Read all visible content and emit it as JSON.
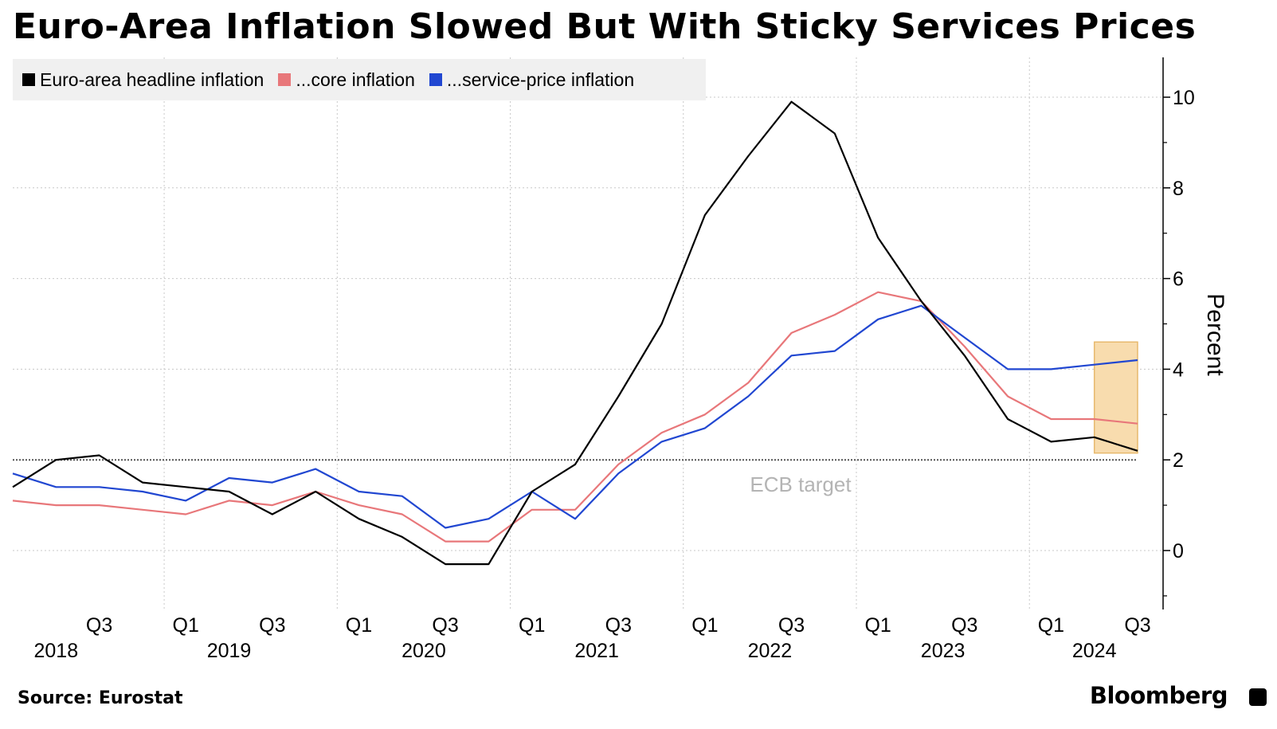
{
  "title": "Euro-Area Inflation Slowed But With Sticky Services Prices",
  "source": "Source: Eurostat",
  "brand": "Bloomberg",
  "chart_data": {
    "type": "line",
    "title": "Euro-Area Inflation Slowed But With Sticky Services Prices",
    "ylabel": "Percent",
    "ylim": [
      -1.25,
      11
    ],
    "yticks": [
      0,
      2,
      4,
      6,
      8,
      10
    ],
    "grid": true,
    "legend_position": "top-left",
    "x": [
      "2018Q1",
      "2018Q2",
      "2018Q3",
      "2018Q4",
      "2019Q1",
      "2019Q2",
      "2019Q3",
      "2019Q4",
      "2020Q1",
      "2020Q2",
      "2020Q3",
      "2020Q4",
      "2021Q1",
      "2021Q2",
      "2021Q3",
      "2021Q4",
      "2022Q1",
      "2022Q2",
      "2022Q3",
      "2022Q4",
      "2023Q1",
      "2023Q2",
      "2023Q3",
      "2023Q4",
      "2024Q1",
      "2024Q2",
      "2024Q3"
    ],
    "quarter_labels": [
      {
        "x": "2018Q3",
        "label": "Q3"
      },
      {
        "x": "2019Q1",
        "label": "Q1"
      },
      {
        "x": "2019Q3",
        "label": "Q3"
      },
      {
        "x": "2020Q1",
        "label": "Q1"
      },
      {
        "x": "2020Q3",
        "label": "Q3"
      },
      {
        "x": "2021Q1",
        "label": "Q1"
      },
      {
        "x": "2021Q3",
        "label": "Q3"
      },
      {
        "x": "2022Q1",
        "label": "Q1"
      },
      {
        "x": "2022Q3",
        "label": "Q3"
      },
      {
        "x": "2023Q1",
        "label": "Q1"
      },
      {
        "x": "2023Q3",
        "label": "Q3"
      },
      {
        "x": "2024Q1",
        "label": "Q1"
      },
      {
        "x": "2024Q3",
        "label": "Q3"
      }
    ],
    "year_labels": [
      {
        "label": "2018",
        "from": "2018Q1",
        "to": "2018Q3"
      },
      {
        "label": "2019",
        "from": "2018Q4",
        "to": "2019Q4"
      },
      {
        "label": "2020",
        "from": "2020Q1",
        "to": "2020Q4"
      },
      {
        "label": "2021",
        "from": "2021Q1",
        "to": "2021Q4"
      },
      {
        "label": "2022",
        "from": "2022Q1",
        "to": "2022Q4"
      },
      {
        "label": "2023",
        "from": "2023Q1",
        "to": "2023Q4"
      },
      {
        "label": "2024",
        "from": "2024Q1",
        "to": "2024Q3"
      }
    ],
    "series": [
      {
        "name": "Euro-area headline inflation",
        "color": "#000000",
        "values": [
          1.4,
          2.0,
          2.1,
          1.5,
          1.4,
          1.3,
          0.8,
          1.3,
          0.7,
          0.3,
          -0.3,
          -0.3,
          1.3,
          1.9,
          3.4,
          5.0,
          7.4,
          8.7,
          9.9,
          9.2,
          6.9,
          5.5,
          4.3,
          2.9,
          2.4,
          2.5,
          2.2
        ]
      },
      {
        "name": "...core inflation",
        "color": "#e8777a",
        "values": [
          1.1,
          1.0,
          1.0,
          0.9,
          0.8,
          1.1,
          1.0,
          1.3,
          1.0,
          0.8,
          0.2,
          0.2,
          0.9,
          0.9,
          1.9,
          2.6,
          3.0,
          3.7,
          4.8,
          5.2,
          5.7,
          5.5,
          4.5,
          3.4,
          2.9,
          2.9,
          2.8
        ]
      },
      {
        "name": "...service-price inflation",
        "color": "#2147d1",
        "values": [
          1.7,
          1.4,
          1.4,
          1.3,
          1.1,
          1.6,
          1.5,
          1.8,
          1.3,
          1.2,
          0.5,
          0.7,
          1.3,
          0.7,
          1.7,
          2.4,
          2.7,
          3.4,
          4.3,
          4.4,
          5.1,
          5.4,
          4.7,
          4.0,
          4.0,
          4.1,
          4.2
        ]
      }
    ],
    "reference_line": {
      "value": 2,
      "label": "ECB target",
      "color": "#b4b4b4"
    },
    "highlight": {
      "from": "2024Q2",
      "to": "2024Q3",
      "ymin": 2.15,
      "ymax": 4.6,
      "color": "#f8dcae",
      "border": "#e7b96d"
    }
  }
}
